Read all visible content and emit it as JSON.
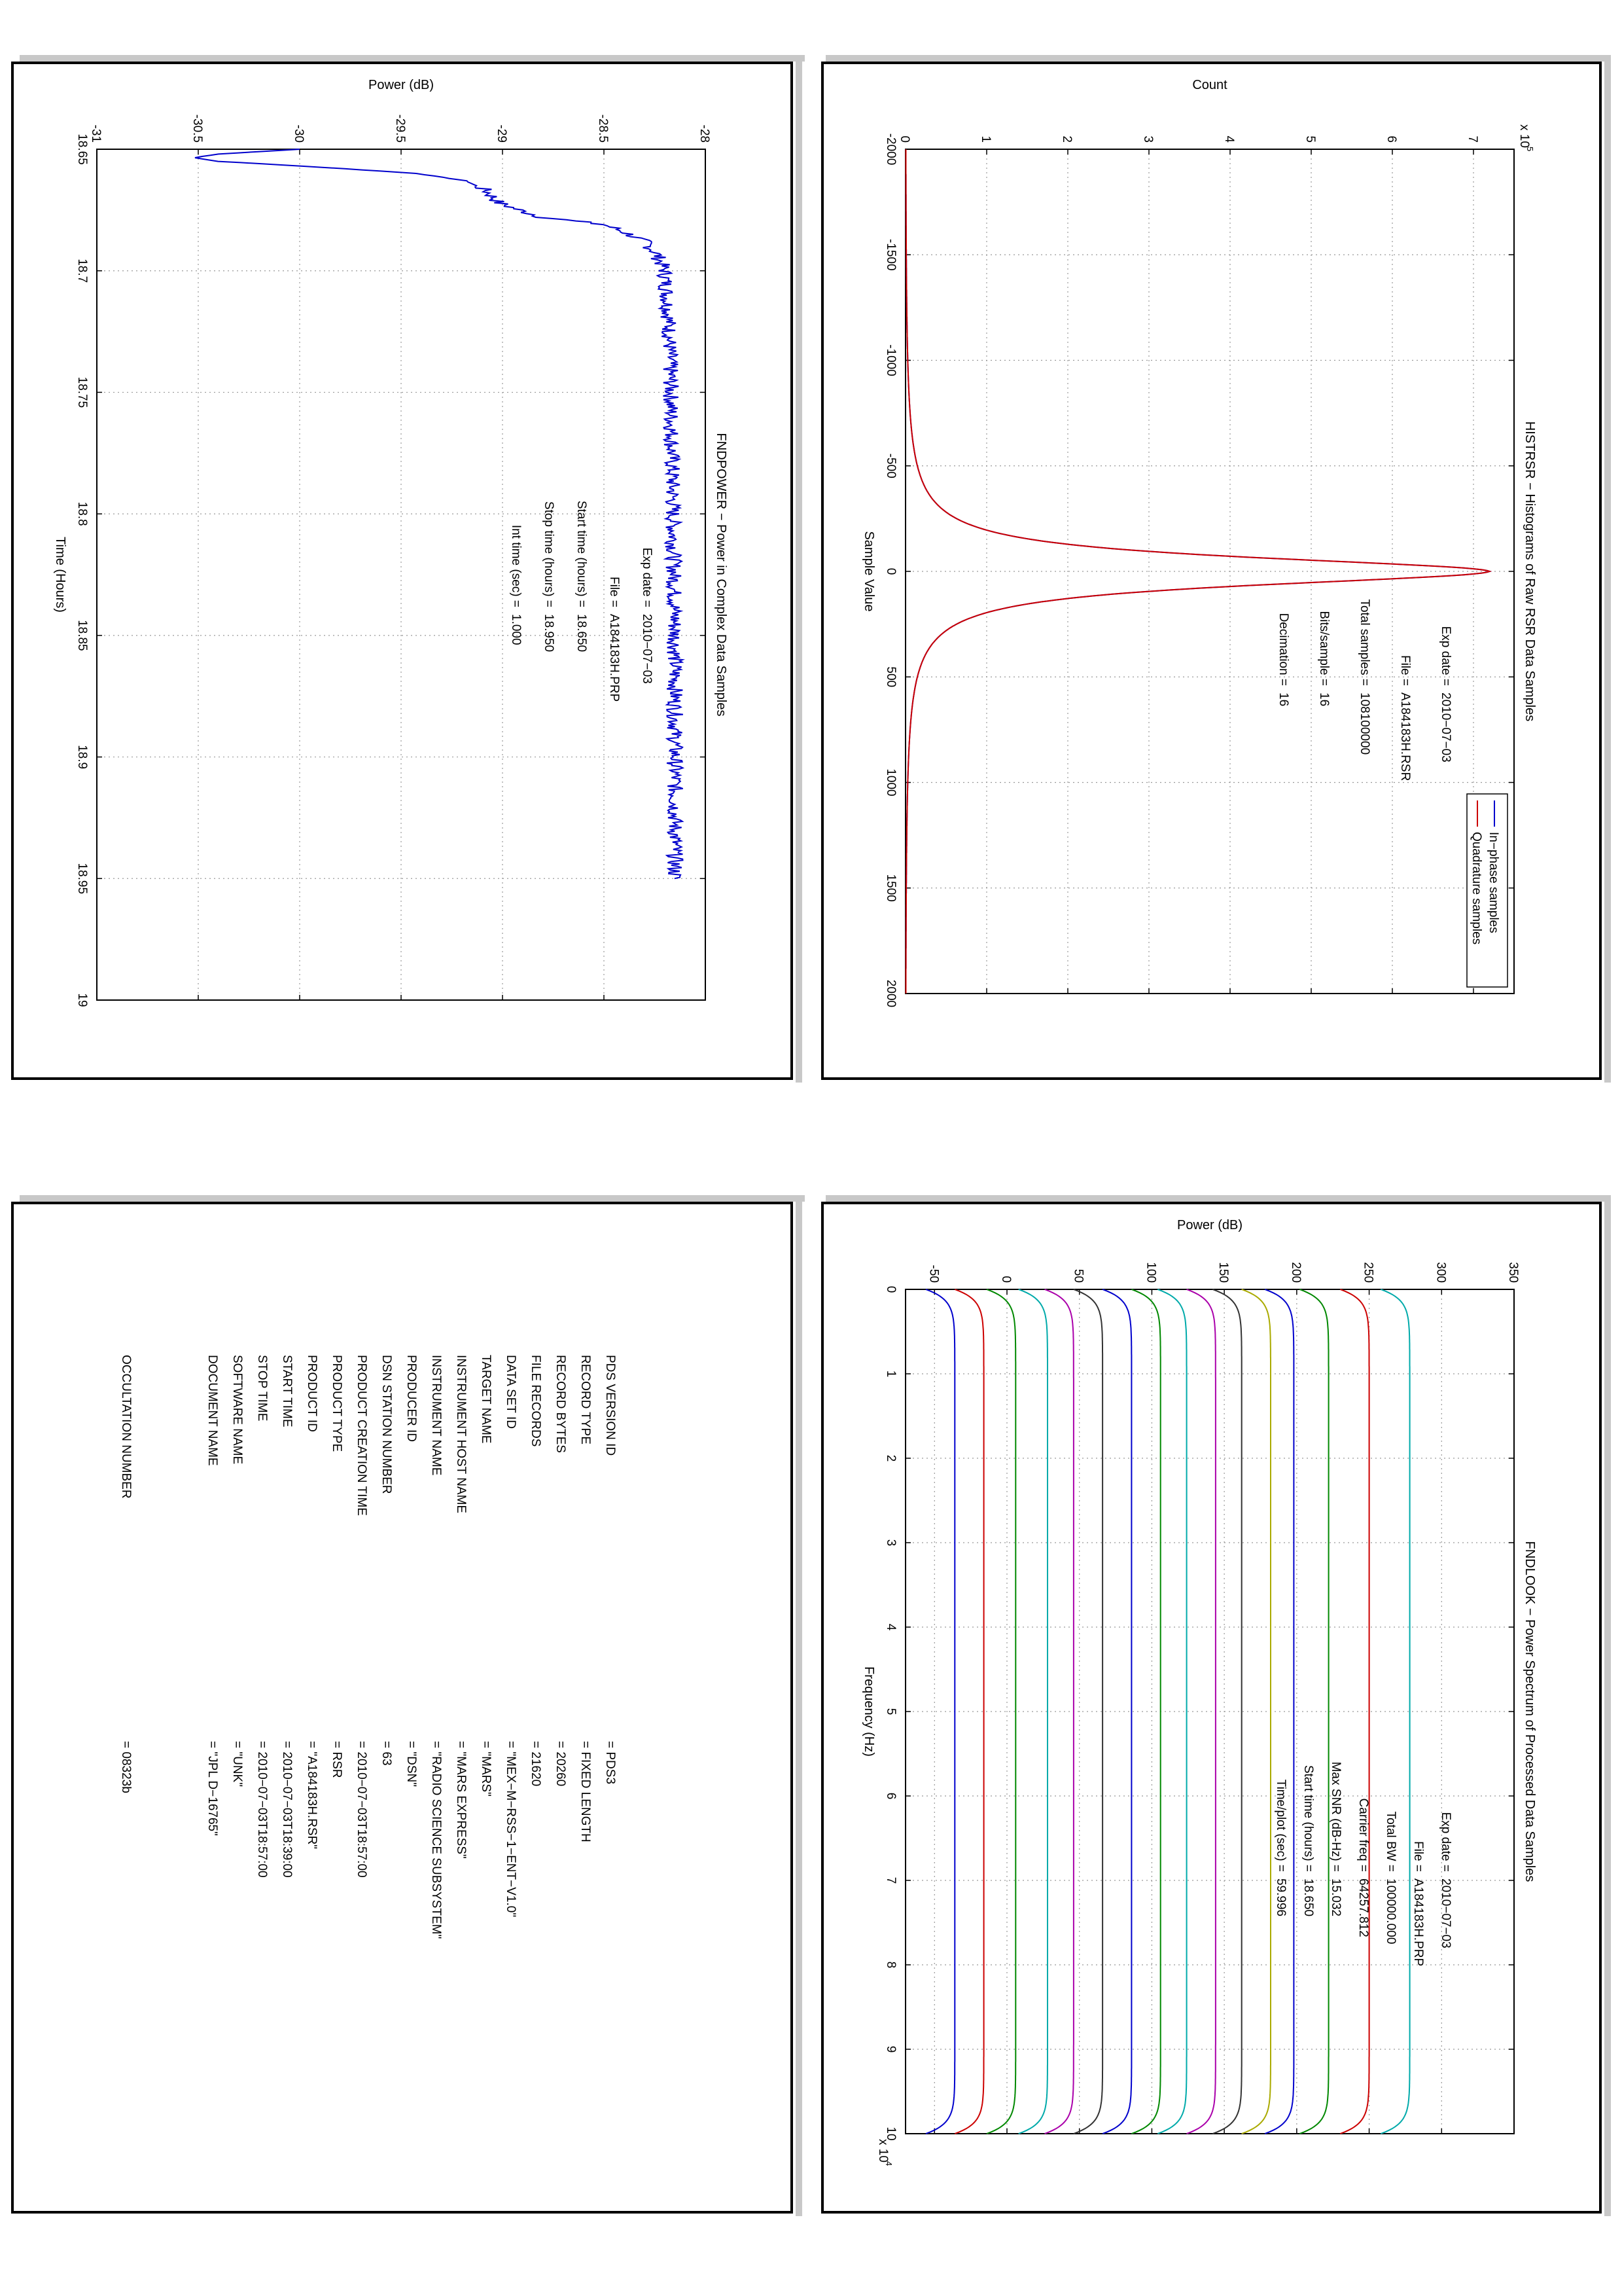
{
  "colors": {
    "in_phase": "#0000cc",
    "quadrature": "#cc0000",
    "power": "#0000cc",
    "spectrum": [
      "#00aaaa",
      "#cc0000",
      "#008800",
      "#0000cc",
      "#aaaa00",
      "#333333",
      "#aa00aa",
      "#00aaaa",
      "#008800",
      "#0000cc",
      "#333333",
      "#aa00aa",
      "#00aaaa",
      "#008800",
      "#cc0000",
      "#0000cc"
    ]
  },
  "chart_data": [
    {
      "type": "line",
      "title": "HISTRSR − Histograms of Raw RSR Data Samples",
      "xlabel": "Sample Value",
      "ylabel": "Count",
      "xlim": [
        -2000,
        2000
      ],
      "ylim": [
        0,
        7.5
      ],
      "y_multiplier": "x 10",
      "y_multiplier_exp": "5",
      "x_ticks": [
        "-2000",
        "-1500",
        "-1000",
        "-500",
        "0",
        "500",
        "1000",
        "1500",
        "2000"
      ],
      "y_ticks": [
        "0",
        "1",
        "2",
        "3",
        "4",
        "5",
        "6",
        "7"
      ],
      "grid": true,
      "legend_position": "top-right",
      "series": [
        {
          "name": "In−phase samples",
          "peak": 7.2,
          "sigma": 80
        },
        {
          "name": "Quadrature samples",
          "peak": 7.2,
          "sigma": 80
        }
      ],
      "annotations": [
        [
          "Exp date =",
          "2010−07−03"
        ],
        [
          "File =",
          "A184183H.RSR"
        ],
        [
          "Total samples =",
          "108100000"
        ],
        [
          "Bits/sample =",
          "16"
        ],
        [
          "Decimation =",
          "16"
        ]
      ]
    },
    {
      "type": "line",
      "title": "FNDPOWER − Power in Complex Data Samples",
      "xlabel": "Time (Hours)",
      "ylabel": "Power (dB)",
      "xlim": [
        18.65,
        19
      ],
      "ylim": [
        -31,
        -28
      ],
      "x_ticks": [
        "18.65",
        "18.7",
        "18.75",
        "18.8",
        "18.85",
        "18.9",
        "18.95",
        "19"
      ],
      "y_ticks": [
        "-31",
        "-30.5",
        "-30",
        "-29.5",
        "-29",
        "-28.5",
        "-28"
      ],
      "grid": true,
      "series": [
        {
          "name": "",
          "x": [
            18.65,
            18.652,
            18.6535,
            18.655,
            18.6565,
            18.658,
            18.66,
            18.663,
            18.667,
            18.672,
            18.675,
            18.678,
            18.681,
            18.684,
            18.688,
            18.693,
            18.7,
            18.72,
            18.75,
            18.8,
            18.85,
            18.9,
            18.95
          ],
          "y": [
            -30.0,
            -30.4,
            -30.52,
            -30.4,
            -30.08,
            -29.78,
            -29.42,
            -29.18,
            -29.08,
            -29.02,
            -28.92,
            -28.8,
            -28.5,
            -28.4,
            -28.3,
            -28.24,
            -28.2,
            -28.18,
            -28.17,
            -28.16,
            -28.15,
            -28.15,
            -28.15
          ]
        }
      ],
      "annotations": [
        [
          "Exp date =",
          "2010−07−03"
        ],
        [
          "File =",
          "A184183H.PRP"
        ],
        [
          "Start time (hours) =",
          "18.650"
        ],
        [
          "Stop time (hours) =",
          "18.950"
        ],
        [
          "Int time (sec) =",
          "1.000"
        ]
      ]
    },
    {
      "type": "line",
      "title": "FNDLOOK − Power Spectrum of Processed Data Samples",
      "xlabel": "Frequency (Hz)",
      "ylabel": "Power (dB)",
      "xlim": [
        0,
        10
      ],
      "x_multiplier": "x 10",
      "x_multiplier_exp": "4",
      "ylim": [
        -70,
        350
      ],
      "x_ticks": [
        "0",
        "1",
        "2",
        "3",
        "4",
        "5",
        "6",
        "7",
        "8",
        "9",
        "10"
      ],
      "y_ticks": [
        "-50",
        "0",
        "50",
        "100",
        "150",
        "200",
        "250",
        "300",
        "350"
      ],
      "grid": true,
      "series_count": 16,
      "series_flat_levels": [
        278,
        250,
        222,
        198,
        182,
        162,
        144,
        124,
        106,
        86,
        66,
        46,
        28,
        6,
        -16,
        -36
      ],
      "rolloff_db": 20,
      "annotations": [
        [
          "Exp date =",
          "2010−07−03"
        ],
        [
          "File =",
          "A184183H.PRP"
        ],
        [
          "Total BW =",
          "100000.000"
        ],
        [
          "Carrier freq =",
          "64257.812"
        ],
        [
          "Max SNR (dB-Hz) =",
          "15.032"
        ],
        [
          "Start time (hours) =",
          "18.650"
        ],
        [
          "Time/plot (sec) =",
          "59.996"
        ]
      ]
    }
  ],
  "pds_label": [
    [
      "PDS VERSION ID",
      "= PDS3"
    ],
    [
      "RECORD TYPE",
      "= FIXED LENGTH"
    ],
    [
      "RECORD BYTES",
      "= 20260"
    ],
    [
      "FILE RECORDS",
      "= 21620"
    ],
    [
      "DATA SET ID",
      "= \"MEX−M−RSS−1−ENT−V1.0\""
    ],
    [
      "TARGET NAME",
      "= \"MARS\""
    ],
    [
      "INSTRUMENT HOST NAME",
      "= \"MARS EXPRESS\""
    ],
    [
      "INSTRUMENT NAME",
      "= \"RADIO SCIENCE SUBSYSTEM\""
    ],
    [
      "PRODUCER ID",
      "= \"DSN\""
    ],
    [
      "DSN STATION NUMBER",
      "= 63"
    ],
    [
      "PRODUCT CREATION TIME",
      "= 2010−07−03T18:57:00"
    ],
    [
      "PRODUCT TYPE",
      "= RSR"
    ],
    [
      "PRODUCT ID",
      "= \"A184183H.RSR\""
    ],
    [
      "START TIME",
      "= 2010−07−03T18:39:00"
    ],
    [
      "STOP TIME",
      "= 2010−07−03T18:57:00"
    ],
    [
      "SOFTWARE NAME",
      "= \"UNK\""
    ],
    [
      "DOCUMENT NAME",
      "= \"JPL D−16765\""
    ],
    [
      "OCCULTATION NUMBER",
      "= 08323b"
    ]
  ]
}
